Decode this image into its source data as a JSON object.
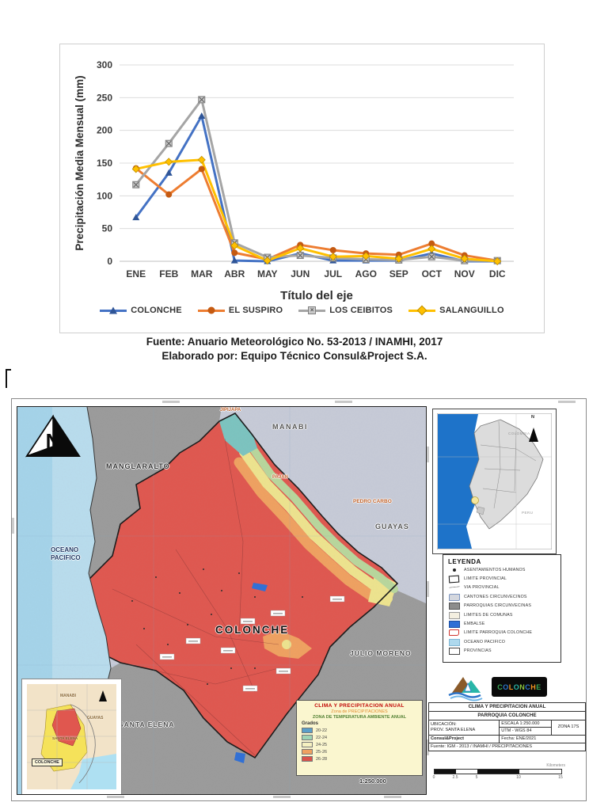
{
  "figure_caption": {
    "line1": "Fuente: Anuario Meteorológico No. 53-2013 / INAMHI, 2017",
    "line2": "Elaborado por: Equipo Técnico Consul&Project S.A."
  },
  "chart_data": {
    "type": "line",
    "title": "",
    "xlabel": "Título del eje",
    "ylabel": "Precipitación Media Mensual (mm)",
    "ylim": [
      0,
      300
    ],
    "ytick_step": 50,
    "grid": true,
    "legend_position": "bottom",
    "categories": [
      "ENE",
      "FEB",
      "MAR",
      "ABR",
      "MAY",
      "JUN",
      "JUL",
      "AGO",
      "SEP",
      "OCT",
      "NOV",
      "DIC"
    ],
    "series": [
      {
        "name": "COLONCHE",
        "color": "#4472C4",
        "marker": "triangle",
        "marker_color": "#2F5597",
        "values": [
          67,
          135,
          222,
          1,
          0,
          12,
          1,
          1,
          1,
          12,
          0,
          0
        ]
      },
      {
        "name": "EL SUSPIRO",
        "color": "#ED7D31",
        "marker": "circle",
        "marker_color": "#C55A11",
        "values": [
          142,
          102,
          141,
          13,
          3,
          25,
          17,
          12,
          10,
          27,
          9,
          1
        ]
      },
      {
        "name": "LOS CEIBITOS",
        "color": "#A5A5A5",
        "marker": "square-x",
        "marker_color": "#A5A5A5",
        "values": [
          117,
          180,
          247,
          28,
          6,
          9,
          5,
          3,
          2,
          7,
          1,
          1
        ]
      },
      {
        "name": "SALANGUILLO",
        "color": "#FFC000",
        "marker": "diamond",
        "marker_color": "#FFC000",
        "values": [
          141,
          152,
          155,
          24,
          1,
          20,
          7,
          8,
          4,
          19,
          4,
          0
        ]
      }
    ]
  },
  "map": {
    "labels": {
      "manglaralto": "MANGLARALTO",
      "manabi": "MANABI",
      "jipijapa": "JIPIJAPA",
      "pajan": "PAJAN",
      "pedro_carbo": "PEDRO CARBO",
      "guayas": "GUAYAS",
      "oceano_1": "OCEANO",
      "oceano_2": "PACIFICO",
      "colonche": "COLONCHE",
      "julio_moreno": "JULIO MORENO",
      "santa_elena": "SANTA ELENA",
      "scale_text": "1:250.000"
    },
    "zone_colors": {
      "red": "#e0574f",
      "orange": "#f0a160",
      "yellow": "#eee48e",
      "green": "#b8d79c",
      "teal": "#7cc4c0",
      "ocean": "#b9ddee",
      "terrain_gray": "#9b9b9b",
      "terrain_lavender": "#c7cbd8",
      "embalse": "#2f6fd6"
    },
    "clima_box": {
      "title": "CLIMA Y PRECIPITACION ANUAL",
      "subtitle1": "Zona de PRECIPITACIONES",
      "subtitle2": "ZONA DE TEMPERATURA AMBIENTE ANUAL",
      "grados": "Grados",
      "classes": [
        {
          "range": "20-22",
          "color": "#5b9fc9"
        },
        {
          "range": "22-24",
          "color": "#9fd5b5"
        },
        {
          "range": "24-25",
          "color": "#f5f0c0"
        },
        {
          "range": "25-26",
          "color": "#f0a160"
        },
        {
          "range": "26-28",
          "color": "#d9534a"
        }
      ]
    },
    "inset_local": {
      "manabi": "MANABI",
      "guayas": "GUAYAS",
      "santa_elena": "SANTA ELENA",
      "colonche": "COLONCHE"
    },
    "inset_ecuador": {
      "colombia": "COLOMBIA",
      "peru": "PERU",
      "north": "N"
    },
    "leyenda": {
      "title": "LEYENDA",
      "items": [
        {
          "icon": "dot",
          "label": "ASENTAMIENTOS HUMANOS"
        },
        {
          "icon": "limprov",
          "label": "LIMITE PROVINCIAL"
        },
        {
          "icon": "via",
          "label": "VIA PROVINCIAL"
        },
        {
          "icon": "canton",
          "label": "CANTONES CIRCUNVECINOS"
        },
        {
          "icon": "parro",
          "label": "PARROQUIAS CIRCUNVECINAS"
        },
        {
          "icon": "comuna",
          "label": "LIMITES DE COMUNAS"
        },
        {
          "icon": "embalse",
          "label": "EMBALSE"
        },
        {
          "icon": "limcol",
          "label": "LIMITE PARROQUIA COLONCHE"
        },
        {
          "icon": "oceano",
          "label": "OCEANO PACIFICO"
        },
        {
          "icon": "prov",
          "label": "PROVINCIAS"
        }
      ]
    },
    "logo": {
      "text": "COLONCHE",
      "letter_colors": [
        "#3aa655",
        "#2e75c9",
        "#f29422",
        "#29b6a8",
        "#8cc63f",
        "#2e75c9",
        "#f29422",
        "#3aa655"
      ]
    },
    "info_table": {
      "title1": "CLIMA Y PRECIPITACION ANUAL",
      "title2": "PARROQUIA COLONCHE",
      "ubicacion_label": "UBICACIÓN:",
      "ubicacion_value": "PROV. SANTA ELENA",
      "escala": "ESCALA 1:250.000",
      "utm": "UTM - WGS 84",
      "zona": "ZONA 17S",
      "autor": "Consul&Project",
      "fecha": "Fecha: ENE/2021",
      "fuente": "Fuente: IGM - 2013 / INAMHI / PRECIPITACIONES"
    },
    "scale_bar": {
      "ticks": [
        "0",
        "2.5",
        "5",
        "10",
        "15"
      ],
      "unit": "Kilometers"
    }
  }
}
